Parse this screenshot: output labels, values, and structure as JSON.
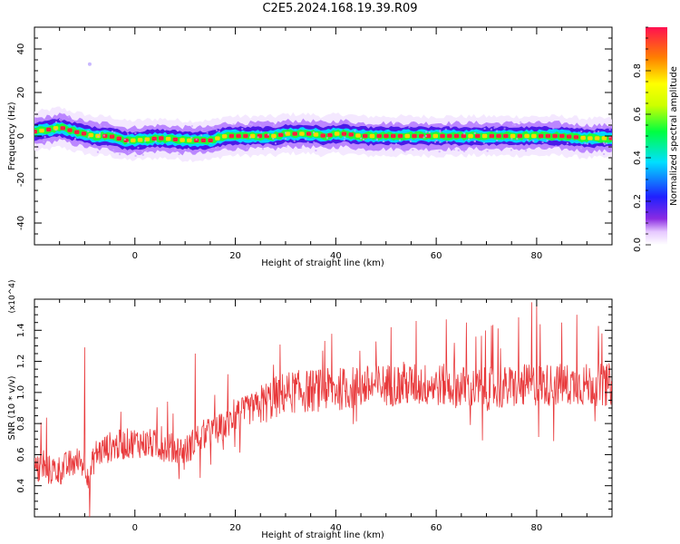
{
  "figure_title": "C2E5.2024.168.19.39.R09",
  "colors": {
    "snr_line": "#e8383a",
    "axis": "#000000",
    "background": "#ffffff"
  },
  "chart_data": [
    {
      "type": "heatmap",
      "title": "C2E5.2024.168.19.39.R09",
      "xlabel": "Height of straight line (km)",
      "ylabel": "Frequency (Hz)",
      "xlim": [
        -20,
        95
      ],
      "ylim": [
        -50,
        50
      ],
      "xticks": [
        0,
        20,
        40,
        60,
        80
      ],
      "yticks": [
        -40,
        -20,
        0,
        20,
        40
      ],
      "ytick_labels": [
        "-40",
        "-20",
        "0",
        "20",
        "40"
      ],
      "colorbar": {
        "label": "Normalized spectral amplitude",
        "range": [
          0,
          1
        ],
        "ticks": [
          0,
          0.2,
          0.4,
          0.6,
          0.8
        ],
        "tick_labels": [
          "0.0",
          "0.2",
          "0.4",
          "0.6",
          "0.8"
        ],
        "colormap": "rainbow (purple-blue-cyan-green-yellow-red)"
      },
      "ridge": {
        "description": "dominant frequency track",
        "x": [
          -20,
          -17,
          -15,
          -12,
          -10,
          -8,
          -5,
          -2,
          0,
          5,
          10,
          15,
          18,
          22,
          25,
          28,
          30,
          32,
          35,
          38,
          40,
          42,
          45,
          50,
          55,
          60,
          65,
          70,
          75,
          80,
          85,
          90,
          94
        ],
        "y": [
          2,
          3,
          4,
          2,
          1,
          0,
          0,
          -2,
          -2,
          -1,
          -2,
          -2,
          0,
          0,
          0,
          0,
          1,
          1,
          1,
          0,
          1,
          1,
          0,
          0,
          0,
          0,
          0,
          0,
          0,
          0,
          0,
          -1,
          -1
        ]
      },
      "outlier_point": {
        "x": -9,
        "y": 33
      }
    },
    {
      "type": "line",
      "xlabel": "Height of straight line (km)",
      "ylabel": "SNR (10 * v/v)",
      "y_multiplier": "(x10^4)",
      "xlim": [
        -20,
        95
      ],
      "ylim": [
        0.2,
        1.6
      ],
      "xticks": [
        0,
        20,
        40,
        60,
        80
      ],
      "yticks": [
        0.4,
        0.6,
        0.8,
        1.0,
        1.2,
        1.4
      ],
      "ytick_labels": [
        "0.4",
        "0.6",
        "0.8",
        "1.0",
        "1.2",
        "1.4"
      ],
      "series": [
        {
          "trend": {
            "x": [
              -20,
              -15,
              -12,
              -10,
              -9,
              -8,
              -5,
              0,
              5,
              10,
              13,
              15,
              18,
              20,
              25,
              30,
              40,
              50,
              60,
              70,
              80,
              90,
              95
            ],
            "y": [
              0.5,
              0.5,
              0.55,
              0.55,
              0.45,
              0.6,
              0.65,
              0.68,
              0.66,
              0.62,
              0.72,
              0.74,
              0.78,
              0.85,
              0.92,
              1.0,
              1.02,
              1.05,
              1.05,
              1.02,
              1.05,
              1.05,
              1.05
            ]
          },
          "noise_amplitude": 0.1,
          "spikes": [
            {
              "x": -10,
              "y": 1.29
            },
            {
              "x": -9,
              "y": 0.2
            },
            {
              "x": 12,
              "y": 1.25
            },
            {
              "x": 13,
              "y": 0.45
            },
            {
              "x": 51,
              "y": 1.42
            },
            {
              "x": 56,
              "y": 1.46
            },
            {
              "x": 62,
              "y": 1.47
            },
            {
              "x": 66,
              "y": 1.45
            },
            {
              "x": 71,
              "y": 1.43
            },
            {
              "x": 79,
              "y": 1.58
            },
            {
              "x": 80,
              "y": 1.57
            },
            {
              "x": 88,
              "y": 1.5
            },
            {
              "x": 85,
              "y": 1.45
            },
            {
              "x": 93,
              "y": 1.38
            }
          ]
        }
      ]
    }
  ]
}
